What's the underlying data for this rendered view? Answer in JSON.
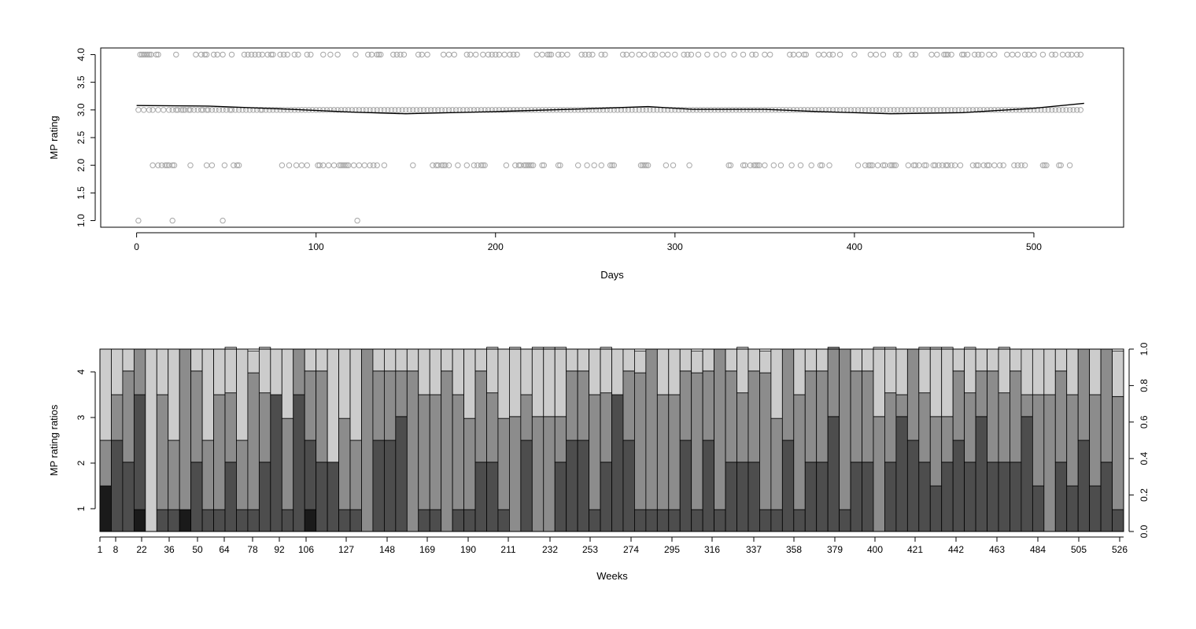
{
  "chart_data": [
    {
      "type": "scatter",
      "xlabel": "Days",
      "ylabel": "MP rating",
      "xlim": [
        -20,
        550
      ],
      "ylim": [
        0.88,
        4.12
      ],
      "x_ticks": [
        0,
        100,
        200,
        300,
        400,
        500
      ],
      "y_ticks": [
        1.0,
        1.5,
        2.0,
        2.5,
        3.0,
        3.5,
        4.0
      ],
      "x_tick_labels": [
        "0",
        "100",
        "200",
        "300",
        "400",
        "500"
      ],
      "y_tick_labels": [
        "1.0",
        "1.5",
        "2.0",
        "2.5",
        "3.0",
        "3.5",
        "4.0"
      ],
      "grid": false,
      "point_color": "#a6a6a6",
      "line_color": "#000000",
      "points_rating_4": [
        2,
        3,
        4,
        5,
        6,
        7,
        8,
        11,
        12,
        22,
        33,
        36,
        38,
        39,
        43,
        45,
        48,
        53,
        60,
        62,
        64,
        66,
        68,
        70,
        73,
        75,
        76,
        80,
        82,
        84,
        88,
        90,
        95,
        97,
        104,
        108,
        112,
        122,
        129,
        131,
        134,
        135,
        136,
        143,
        145,
        147,
        149,
        157,
        159,
        162,
        171,
        174,
        177,
        184,
        186,
        189,
        193,
        196,
        198,
        200,
        202,
        205,
        208,
        210,
        212,
        223,
        226,
        229,
        230,
        231,
        235,
        237,
        240,
        248,
        250,
        252,
        254,
        259,
        261,
        271,
        273,
        276,
        280,
        283,
        287,
        289,
        293,
        296,
        300,
        305,
        307,
        309,
        313,
        318,
        323,
        327,
        333,
        338,
        343,
        345,
        350,
        353,
        364,
        366,
        369,
        372,
        373,
        380,
        383,
        386,
        388,
        392,
        400,
        409,
        412,
        416,
        423,
        425,
        432,
        434,
        443,
        446,
        450,
        451,
        452,
        454,
        460,
        461,
        463,
        467,
        469,
        471,
        475,
        478,
        485,
        488,
        491,
        495,
        497,
        500,
        505,
        510,
        512,
        516,
        519,
        521,
        524,
        526
      ],
      "points_rating_3": [
        1,
        4,
        7,
        9,
        12,
        15,
        18,
        20,
        22,
        23,
        25,
        26,
        27,
        29,
        30,
        32,
        34,
        36,
        37,
        39,
        40,
        42,
        44,
        46,
        48,
        50,
        52,
        53,
        55,
        57,
        59,
        61,
        63,
        65,
        67,
        69,
        70,
        72,
        74,
        76,
        78,
        80,
        82,
        84,
        86,
        88,
        90,
        92,
        94,
        96,
        98,
        100,
        102,
        104,
        106,
        108,
        110,
        112,
        114,
        116,
        118,
        120,
        122,
        124,
        126,
        128,
        130,
        132,
        134,
        136,
        138,
        140,
        142,
        144,
        146,
        148,
        150,
        152,
        154,
        156,
        158,
        160,
        162,
        164,
        166,
        168,
        170,
        172,
        174,
        176,
        178,
        180,
        182,
        184,
        186,
        188,
        190,
        192,
        194,
        196,
        198,
        200,
        202,
        204,
        206,
        208,
        210,
        212,
        214,
        216,
        218,
        220,
        222,
        224,
        226,
        228,
        230,
        232,
        234,
        236,
        238,
        240,
        242,
        244,
        246,
        248,
        250,
        252,
        254,
        256,
        258,
        260,
        262,
        264,
        266,
        268,
        270,
        272,
        274,
        276,
        278,
        280,
        282,
        284,
        286,
        288,
        290,
        292,
        294,
        296,
        298,
        300,
        302,
        304,
        306,
        308,
        310,
        312,
        314,
        316,
        318,
        320,
        322,
        324,
        326,
        328,
        330,
        332,
        334,
        336,
        338,
        340,
        342,
        344,
        346,
        348,
        350,
        352,
        354,
        356,
        358,
        360,
        362,
        364,
        366,
        368,
        370,
        372,
        374,
        376,
        378,
        380,
        382,
        384,
        386,
        388,
        390,
        392,
        394,
        396,
        398,
        400,
        402,
        404,
        406,
        408,
        410,
        412,
        414,
        416,
        418,
        420,
        422,
        424,
        426,
        428,
        430,
        432,
        434,
        436,
        438,
        440,
        442,
        444,
        446,
        448,
        450,
        452,
        454,
        456,
        458,
        460,
        462,
        464,
        466,
        468,
        470,
        472,
        474,
        476,
        478,
        480,
        482,
        484,
        486,
        488,
        490,
        492,
        494,
        496,
        498,
        500,
        502,
        504,
        506,
        508,
        510,
        512,
        514,
        516,
        518,
        520,
        522,
        524,
        526
      ],
      "points_rating_2": [
        9,
        12,
        14,
        16,
        17,
        18,
        20,
        21,
        30,
        39,
        42,
        49,
        54,
        56,
        57,
        81,
        85,
        89,
        92,
        95,
        101,
        102,
        104,
        107,
        110,
        113,
        114,
        115,
        116,
        117,
        118,
        121,
        124,
        127,
        130,
        132,
        134,
        138,
        154,
        165,
        167,
        168,
        170,
        171,
        172,
        174,
        179,
        184,
        188,
        190,
        192,
        193,
        194,
        206,
        211,
        213,
        214,
        216,
        217,
        218,
        219,
        220,
        221,
        226,
        227,
        235,
        236,
        246,
        251,
        255,
        259,
        264,
        265,
        266,
        281,
        282,
        283,
        284,
        285,
        295,
        299,
        308,
        330,
        331,
        338,
        339,
        342,
        344,
        345,
        346,
        347,
        350,
        355,
        359,
        365,
        370,
        376,
        381,
        382,
        386,
        402,
        406,
        408,
        409,
        410,
        413,
        416,
        417,
        420,
        421,
        422,
        423,
        430,
        433,
        434,
        436,
        439,
        440,
        444,
        445,
        447,
        449,
        451,
        452,
        454,
        456,
        459,
        466,
        468,
        469,
        472,
        474,
        475,
        478,
        481,
        483,
        489,
        491,
        493,
        495,
        505,
        506,
        507,
        514,
        515,
        520
      ],
      "points_rating_1": [
        1,
        20,
        48,
        123
      ],
      "smooth_x": [
        0,
        40,
        80,
        120,
        150,
        200,
        250,
        285,
        310,
        350,
        380,
        420,
        460,
        500,
        528
      ],
      "smooth_y": [
        3.08,
        3.07,
        3.02,
        2.96,
        2.93,
        2.97,
        3.02,
        3.06,
        3.01,
        3.01,
        2.97,
        2.93,
        2.95,
        3.03,
        3.12
      ]
    },
    {
      "type": "bar",
      "stacked": true,
      "xlabel": "Weeks",
      "ylabel": "MP rating ratios",
      "ylim_left": [
        0.5,
        4.5
      ],
      "y_ticks_left": [
        1,
        2,
        3,
        4
      ],
      "ylim_right": [
        0.0,
        1.0
      ],
      "y_ticks_right": [
        "0.0",
        "0.2",
        "0.4",
        "0.6",
        "0.8",
        "1.0"
      ],
      "x_tick_labels": [
        "1",
        "8",
        "22",
        "36",
        "50",
        "64",
        "78",
        "92",
        "106",
        "127",
        "148",
        "169",
        "190",
        "211",
        "232",
        "253",
        "274",
        "295",
        "316",
        "337",
        "358",
        "379",
        "400",
        "421",
        "442",
        "463",
        "484",
        "505",
        "526"
      ],
      "segment_colors": [
        "#1a1a1a",
        "#4d4d4d",
        "#8c8c8c",
        "#cccccc"
      ],
      "rating_levels": [
        1,
        2,
        3,
        4
      ],
      "week_boundaries": [
        1,
        2,
        3,
        4,
        4.6,
        4.9,
        5.5,
        5.9,
        6.2,
        6.5,
        6.8,
        7,
        8
      ],
      "bars": [
        [
          0.25,
          0,
          0.25,
          0.5
        ],
        [
          0,
          0.5,
          0.25,
          0.25
        ],
        [
          0,
          0.38,
          0.5,
          0.12
        ],
        [
          0.12,
          0.63,
          0.25,
          0
        ],
        [
          0,
          0,
          0,
          1.0
        ],
        [
          0,
          0.12,
          0.63,
          0.25
        ],
        [
          0,
          0.12,
          0.38,
          0.5
        ],
        [
          0.12,
          0,
          0.88,
          0
        ],
        [
          0,
          0.38,
          0.5,
          0.12
        ],
        [
          0,
          0.12,
          0.38,
          0.5
        ],
        [
          0,
          0.12,
          0.63,
          0.25
        ],
        [
          0,
          0.38,
          0.38,
          0.25
        ],
        [
          0,
          0.12,
          0.38,
          0.5
        ],
        [
          0,
          0.12,
          0.75,
          0.12
        ],
        [
          0,
          0.38,
          0.38,
          0.25
        ],
        [
          0,
          0.75,
          0,
          0.25
        ],
        [
          0,
          0.12,
          0.5,
          0.38
        ],
        [
          0,
          0.75,
          0.25,
          0
        ],
        [
          0.12,
          0.38,
          0.38,
          0.12
        ],
        [
          0,
          0.38,
          0.5,
          0.12
        ],
        [
          0,
          0.38,
          0,
          0.62
        ],
        [
          0,
          0.12,
          0.5,
          0.38
        ],
        [
          0,
          0.12,
          0.38,
          0.5
        ],
        [
          0,
          0,
          1.0,
          0
        ],
        [
          0,
          0.5,
          0.38,
          0.12
        ],
        [
          0,
          0.5,
          0.38,
          0.12
        ],
        [
          0,
          0.63,
          0.25,
          0.12
        ],
        [
          0,
          0,
          0.88,
          0.12
        ],
        [
          0,
          0.12,
          0.63,
          0.25
        ],
        [
          0,
          0.12,
          0.63,
          0.25
        ],
        [
          0,
          0,
          0.88,
          0.12
        ],
        [
          0,
          0.12,
          0.63,
          0.25
        ],
        [
          0,
          0.12,
          0.5,
          0.38
        ],
        [
          0,
          0.38,
          0.5,
          0.12
        ],
        [
          0,
          0.38,
          0.38,
          0.25
        ],
        [
          0,
          0.12,
          0.5,
          0.38
        ],
        [
          0,
          0,
          0.63,
          0.38
        ],
        [
          0,
          0.5,
          0.25,
          0.25
        ],
        [
          0,
          0,
          0.63,
          0.38
        ],
        [
          0,
          0,
          0.63,
          0.38
        ],
        [
          0,
          0.38,
          0.25,
          0.38
        ],
        [
          0,
          0.5,
          0.38,
          0.12
        ],
        [
          0,
          0.5,
          0.38,
          0.12
        ],
        [
          0,
          0.12,
          0.63,
          0.25
        ],
        [
          0,
          0.38,
          0.38,
          0.25
        ],
        [
          0,
          0.75,
          0,
          0.25
        ],
        [
          0,
          0.5,
          0.38,
          0.12
        ],
        [
          0,
          0.12,
          0.75,
          0.12
        ],
        [
          0,
          0.12,
          0.88,
          0
        ],
        [
          0,
          0.12,
          0.63,
          0.25
        ],
        [
          0,
          0.12,
          0.63,
          0.25
        ],
        [
          0,
          0.5,
          0.38,
          0.12
        ],
        [
          0,
          0.12,
          0.75,
          0.12
        ],
        [
          0,
          0.5,
          0.38,
          0.12
        ],
        [
          0,
          0.12,
          0.88,
          0
        ],
        [
          0,
          0.38,
          0.5,
          0.12
        ],
        [
          0,
          0.38,
          0.38,
          0.25
        ],
        [
          0,
          0.38,
          0.5,
          0.12
        ],
        [
          0,
          0.12,
          0.75,
          0.12
        ],
        [
          0,
          0.12,
          0.5,
          0.38
        ],
        [
          0,
          0.5,
          0.5,
          0
        ],
        [
          0,
          0.12,
          0.63,
          0.25
        ],
        [
          0,
          0.38,
          0.5,
          0.12
        ],
        [
          0,
          0.38,
          0.5,
          0.12
        ],
        [
          0,
          0.63,
          0.38,
          0
        ],
        [
          0,
          0.12,
          0.88,
          0
        ],
        [
          0,
          0.38,
          0.5,
          0.12
        ],
        [
          0,
          0.38,
          0.5,
          0.12
        ],
        [
          0,
          0,
          0.63,
          0.38
        ],
        [
          0,
          0.38,
          0.38,
          0.25
        ],
        [
          0,
          0.63,
          0.12,
          0.25
        ],
        [
          0,
          0.5,
          0.5,
          0
        ],
        [
          0,
          0.38,
          0.38,
          0.25
        ],
        [
          0,
          0.25,
          0.38,
          0.38
        ],
        [
          0,
          0.38,
          0.25,
          0.38
        ],
        [
          0,
          0.5,
          0.38,
          0.12
        ],
        [
          0,
          0.38,
          0.38,
          0.25
        ],
        [
          0,
          0.63,
          0.25,
          0.12
        ],
        [
          0,
          0.38,
          0.5,
          0.12
        ],
        [
          0,
          0.38,
          0.38,
          0.25
        ],
        [
          0,
          0.38,
          0.5,
          0.12
        ],
        [
          0,
          0.63,
          0.12,
          0.25
        ],
        [
          0,
          0.25,
          0.5,
          0.25
        ],
        [
          0,
          0,
          0.75,
          0.25
        ],
        [
          0,
          0.38,
          0.5,
          0.12
        ],
        [
          0,
          0.25,
          0.5,
          0.25
        ],
        [
          0,
          0.5,
          0.5,
          0
        ],
        [
          0,
          0.25,
          0.5,
          0.25
        ],
        [
          0,
          0.38,
          0.62,
          0
        ],
        [
          0,
          0.12,
          0.62,
          0.25
        ]
      ]
    }
  ]
}
